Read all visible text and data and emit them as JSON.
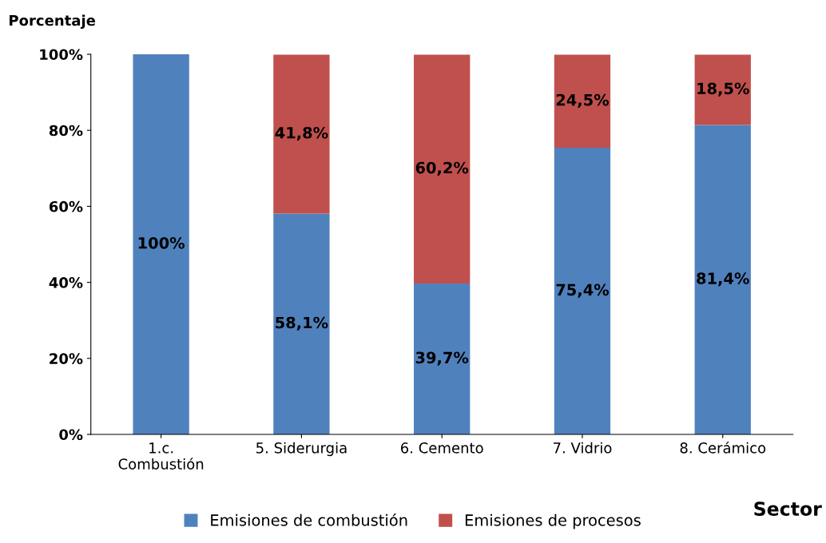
{
  "chart_data": {
    "type": "bar",
    "stacked": true,
    "ylabel": "Porcentaje",
    "xlabel": "Sector",
    "categories": [
      "1.c.\nCombustión",
      "5. Siderurgia",
      "6. Cemento",
      "7. Vidrio",
      "8. Cerámico"
    ],
    "series": [
      {
        "name": "Emisiones de combustión",
        "color": "#4f81bd",
        "values": [
          100,
          58.1,
          39.7,
          75.4,
          81.4
        ],
        "value_labels": [
          "100%",
          "58,1%",
          "39,7%",
          "75,4%",
          "81,4%"
        ]
      },
      {
        "name": "Emisiones de procesos",
        "color": "#c0504d",
        "values": [
          0,
          41.8,
          60.2,
          24.5,
          18.5
        ],
        "value_labels": [
          null,
          "41,8%",
          "60,2%",
          "24,5%",
          "18,5%"
        ]
      }
    ],
    "ylim": [
      0,
      100
    ],
    "yticks": [
      {
        "value": 0,
        "label": "0%"
      },
      {
        "value": 20,
        "label": "20%"
      },
      {
        "value": 40,
        "label": "40%"
      },
      {
        "value": 60,
        "label": "60%"
      },
      {
        "value": 80,
        "label": "80%"
      },
      {
        "value": 100,
        "label": "100%"
      }
    ],
    "grid": false,
    "legend": "bottom"
  }
}
